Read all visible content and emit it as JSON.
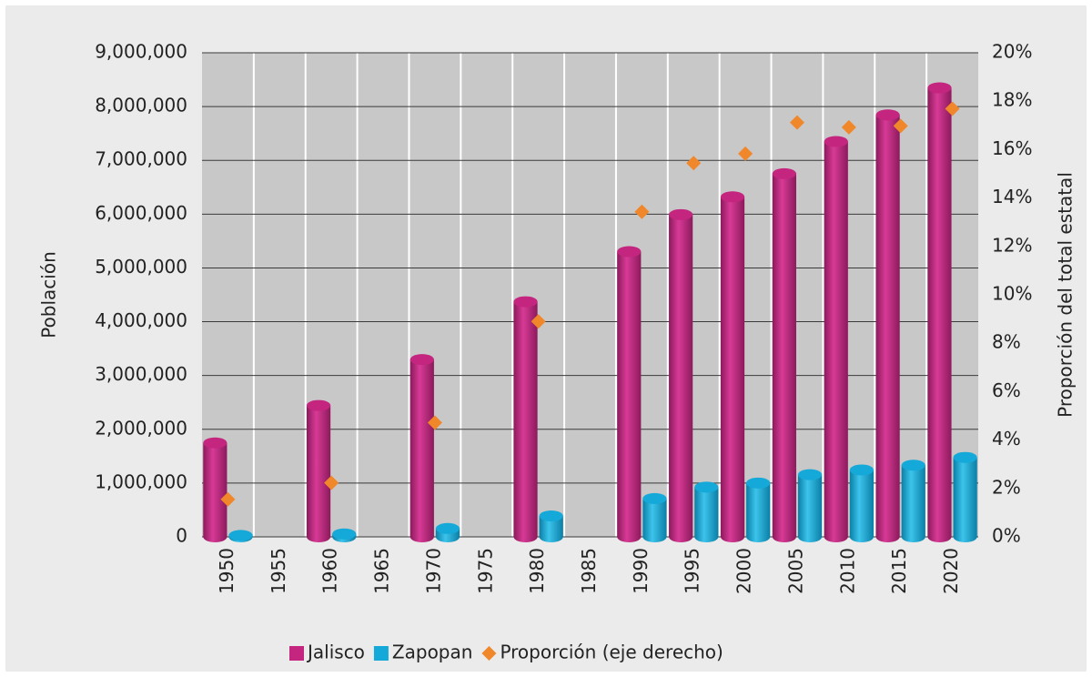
{
  "chart_data": {
    "type": "bar",
    "categories": [
      "1950",
      "1955",
      "1960",
      "1965",
      "1970",
      "1975",
      "1980",
      "1985",
      "1990",
      "1995",
      "2000",
      "2005",
      "2010",
      "2015",
      "2020"
    ],
    "series": [
      {
        "name": "Jalisco",
        "color": "#c4257f",
        "values": [
          1746777,
          null,
          2443261,
          null,
          3296586,
          null,
          4371998,
          null,
          5302689,
          5991176,
          6322002,
          6752113,
          7350682,
          7844830,
          8348151
        ]
      },
      {
        "name": "Zapopan",
        "color": "#14a9d8",
        "values": [
          27115,
          null,
          54487,
          null,
          155488,
          null,
          389081,
          null,
          712008,
          925113,
          1001021,
          1155790,
          1243756,
          1332272,
          1476491
        ]
      },
      {
        "name": "Proporción (eje derecho)",
        "color": "#f0872a",
        "axis": "y2",
        "type": "scatter",
        "values": [
          1.55,
          null,
          2.23,
          null,
          4.72,
          null,
          8.9,
          null,
          13.43,
          15.44,
          15.83,
          17.12,
          16.92,
          16.98,
          17.69
        ]
      }
    ],
    "ylabel": "Población",
    "y2label": "Proporción del total estatal",
    "ylim": [
      0,
      9000000
    ],
    "yticks": [
      0,
      {
        "value": 1000000,
        "label": "1,000,000"
      },
      {
        "value": 2000000,
        "label": "2,000,000"
      },
      {
        "value": 3000000,
        "label": "3,000,000"
      },
      {
        "value": 4000000,
        "label": "4,000,000"
      },
      {
        "value": 5000000,
        "label": "5,000,000"
      },
      {
        "value": 6000000,
        "label": "6,000,000"
      },
      {
        "value": 7000000,
        "label": "7,000,000"
      },
      {
        "value": 8000000,
        "label": "8,000,000"
      },
      {
        "value": 9000000,
        "label": "9,000,000"
      }
    ],
    "y2lim": [
      0,
      20
    ],
    "y2ticks": [
      {
        "value": 0,
        "label": "0%"
      },
      {
        "value": 2,
        "label": "2%"
      },
      {
        "value": 4,
        "label": "4%"
      },
      {
        "value": 6,
        "label": "6%"
      },
      {
        "value": 8,
        "label": "8%"
      },
      {
        "value": 10,
        "label": "10%"
      },
      {
        "value": 12,
        "label": "12%"
      },
      {
        "value": 14,
        "label": "14%"
      },
      {
        "value": 16,
        "label": "16%"
      },
      {
        "value": 18,
        "label": "18%"
      },
      {
        "value": 20,
        "label": "20%"
      }
    ],
    "grid": true,
    "legend": "bottom"
  }
}
